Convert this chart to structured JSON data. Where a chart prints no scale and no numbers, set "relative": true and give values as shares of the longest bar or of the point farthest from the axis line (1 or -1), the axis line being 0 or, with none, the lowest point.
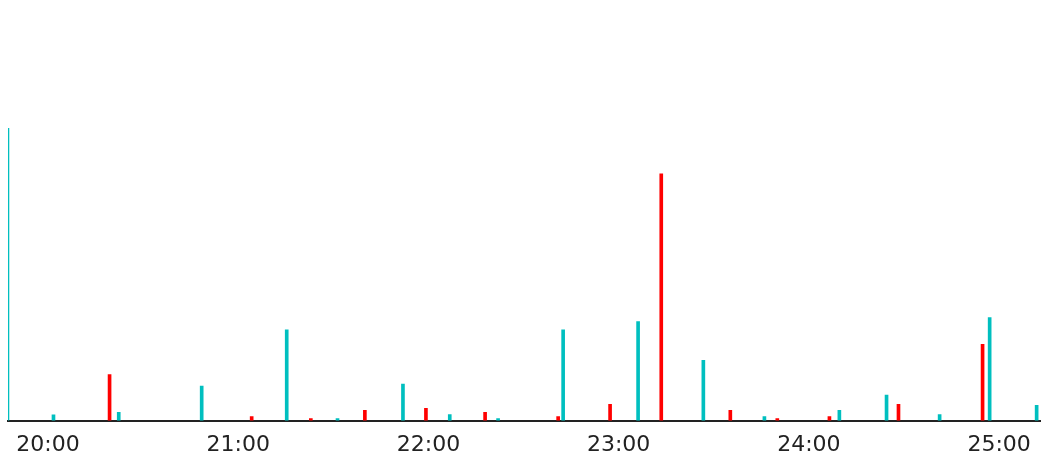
{
  "chart_data": {
    "type": "bar",
    "relative": true,
    "xlim": [
      19.79,
      25.22
    ],
    "xticks": [
      {
        "value": 20,
        "label": "20:00"
      },
      {
        "value": 21,
        "label": "21:00"
      },
      {
        "value": 22,
        "label": "22:00"
      },
      {
        "value": 23,
        "label": "23:00"
      },
      {
        "value": 24,
        "label": "24:00"
      },
      {
        "value": 25,
        "label": "25:00"
      }
    ],
    "grid": false,
    "legend": false,
    "series": [
      {
        "color": "#00bfbf",
        "x": [
          19.795,
          20.037,
          20.38,
          20.816,
          21.263,
          21.53,
          21.874,
          22.12,
          22.374,
          22.716,
          23.11,
          23.453,
          23.774,
          24.168,
          24.416,
          24.695,
          24.958,
          25.205
        ],
        "values": [
          1.0,
          0.02,
          0.028,
          0.118,
          0.31,
          0.007,
          0.125,
          0.021,
          0.007,
          0.31,
          0.338,
          0.206,
          0.014,
          0.035,
          0.087,
          0.021,
          0.352,
          0.052
        ]
      },
      {
        "color": "#ff0000",
        "x": [
          20.316,
          21.063,
          21.374,
          21.658,
          21.979,
          22.29,
          22.674,
          22.947,
          23.216,
          23.579,
          23.826,
          24.1,
          24.463,
          24.905
        ],
        "values": [
          0.157,
          0.014,
          0.007,
          0.035,
          0.042,
          0.028,
          0.014,
          0.056,
          0.843,
          0.035,
          0.007,
          0.014,
          0.056,
          0.261
        ]
      }
    ]
  }
}
